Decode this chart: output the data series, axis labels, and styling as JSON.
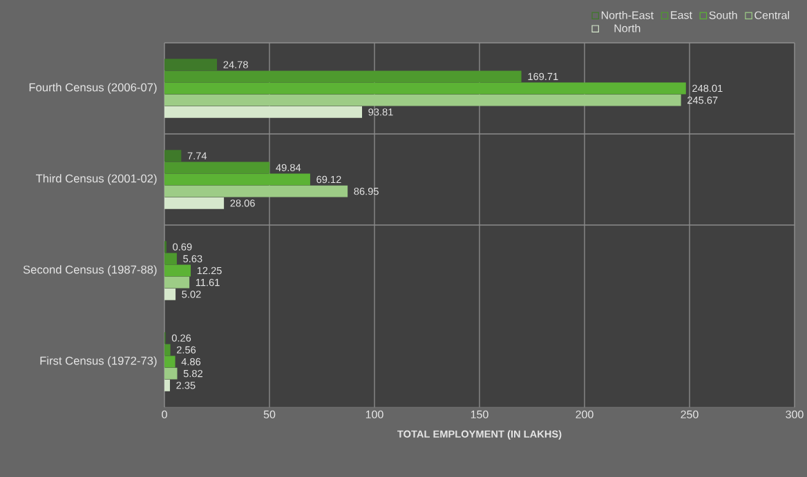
{
  "chart_data": {
    "type": "bar",
    "orientation": "horizontal",
    "xlabel": "TOTAL EMPLOYMENT (IN LAKHS)",
    "categories": [
      "Fourth Census (2006-07)",
      "Third Census (2001-02)",
      "Second Census (1987-88)",
      "First Census (1972-73)"
    ],
    "series": [
      {
        "name": "North-East",
        "color": "#3f7a2a",
        "values": [
          24.78,
          7.74,
          0.69,
          0.26
        ],
        "value_labels": [
          "24.78",
          "7.74",
          "0.69",
          "0.26"
        ]
      },
      {
        "name": "East",
        "color": "#4e9a2e",
        "values": [
          169.71,
          49.84,
          5.63,
          2.56
        ],
        "value_labels": [
          "169.71",
          "49.84",
          "5.63",
          "2.56"
        ]
      },
      {
        "name": "South",
        "color": "#5cb335",
        "values": [
          248.01,
          69.12,
          12.25,
          4.86
        ],
        "value_labels": [
          "248.01",
          "69.12",
          "12.25",
          "4.86"
        ]
      },
      {
        "name": "Central",
        "color": "#9dcc86",
        "values": [
          245.67,
          86.95,
          11.61,
          5.82
        ],
        "value_labels": [
          "245.67",
          "86.95",
          "11.61",
          "5.82"
        ]
      },
      {
        "name": "North",
        "color": "#d6e8cc",
        "values": [
          93.81,
          28.06,
          5.02,
          2.35
        ],
        "value_labels": [
          "93.81",
          "28.06",
          "5.02",
          "2.35"
        ]
      }
    ],
    "xlim": [
      0,
      300
    ],
    "xticks": [
      0,
      50,
      100,
      150,
      200,
      250,
      300
    ],
    "grid": true,
    "legend": "top right"
  }
}
